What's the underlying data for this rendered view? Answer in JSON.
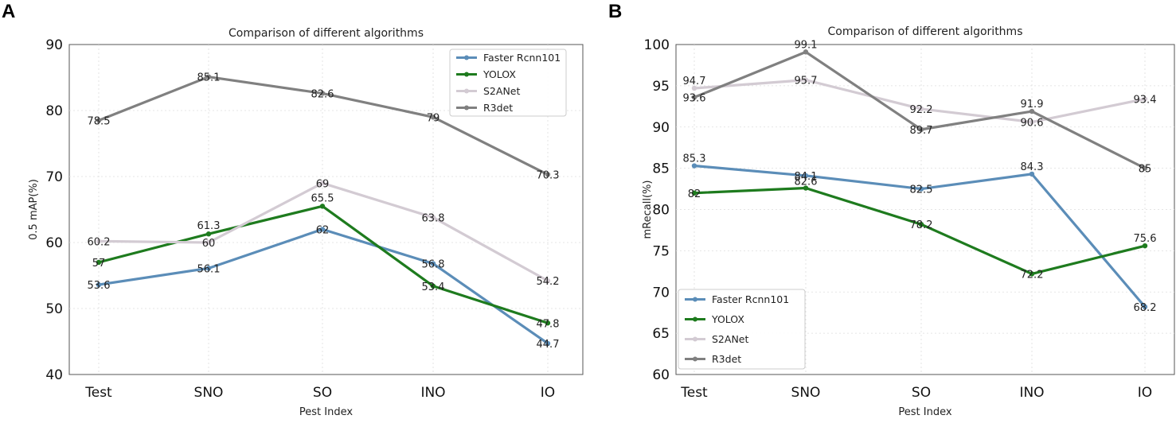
{
  "chart_data": [
    {
      "panel": "A",
      "type": "line",
      "title": "Comparison of different algorithms",
      "xlabel": "Pest Index",
      "ylabel": "0.5 mAP(%)",
      "categories": [
        "Test",
        "SNO",
        "SO",
        "INO",
        "IO"
      ],
      "ylim": [
        40,
        90
      ],
      "yticks": [
        40,
        50,
        60,
        70,
        80,
        90
      ],
      "legend_position": "top-right",
      "series": [
        {
          "name": "Faster Rcnn101",
          "color": "#5b8db8",
          "values": [
            53.6,
            56.1,
            62,
            56.8,
            44.7
          ],
          "labels": [
            "53.6",
            "56.1",
            "62",
            "56.8",
            "44.7"
          ]
        },
        {
          "name": "YOLOX",
          "color": "#1e7b1e",
          "values": [
            57,
            61.3,
            65.5,
            53.4,
            47.8
          ],
          "labels": [
            "57",
            "61.3",
            "65.5",
            "53.4",
            "47.8"
          ]
        },
        {
          "name": "S2ANet",
          "color": "#d3cbd3",
          "values": [
            60.2,
            60,
            69,
            63.8,
            54.2
          ],
          "labels": [
            "60.2",
            "60",
            "69",
            "63.8",
            "54.2"
          ]
        },
        {
          "name": "R3det",
          "color": "#808080",
          "values": [
            78.5,
            85.1,
            82.6,
            79,
            70.3
          ],
          "labels": [
            "78.5",
            "85.1",
            "82.6",
            "79",
            "70.3"
          ]
        }
      ]
    },
    {
      "panel": "B",
      "type": "line",
      "title": "Comparison of different algorithms",
      "xlabel": "Pest Index",
      "ylabel": "mRecall(%)",
      "categories": [
        "Test",
        "SNO",
        "SO",
        "INO",
        "IO"
      ],
      "ylim": [
        60,
        100
      ],
      "yticks": [
        60,
        65,
        70,
        75,
        80,
        85,
        90,
        95,
        100
      ],
      "legend_position": "bottom-left",
      "series": [
        {
          "name": "Faster Rcnn101",
          "color": "#5b8db8",
          "values": [
            85.3,
            84.1,
            82.5,
            84.3,
            68.2
          ],
          "labels": [
            "85.3",
            "84.1",
            "82.5",
            "84.3",
            "68.2"
          ]
        },
        {
          "name": "YOLOX",
          "color": "#1e7b1e",
          "values": [
            82,
            82.6,
            78.2,
            72.2,
            75.6
          ],
          "labels": [
            "82",
            "82.6",
            "78.2",
            "72.2",
            "75.6"
          ]
        },
        {
          "name": "S2ANet",
          "color": "#d3cbd3",
          "values": [
            94.7,
            95.7,
            92.2,
            90.6,
            93.4
          ],
          "labels": [
            "94.7",
            "95.7",
            "92.2",
            "90.6",
            "93.4"
          ]
        },
        {
          "name": "R3det",
          "color": "#808080",
          "values": [
            93.6,
            99.1,
            89.7,
            91.9,
            85
          ],
          "labels": [
            "93.6",
            "99.1",
            "89.7",
            "91.9",
            "85"
          ]
        }
      ]
    }
  ]
}
